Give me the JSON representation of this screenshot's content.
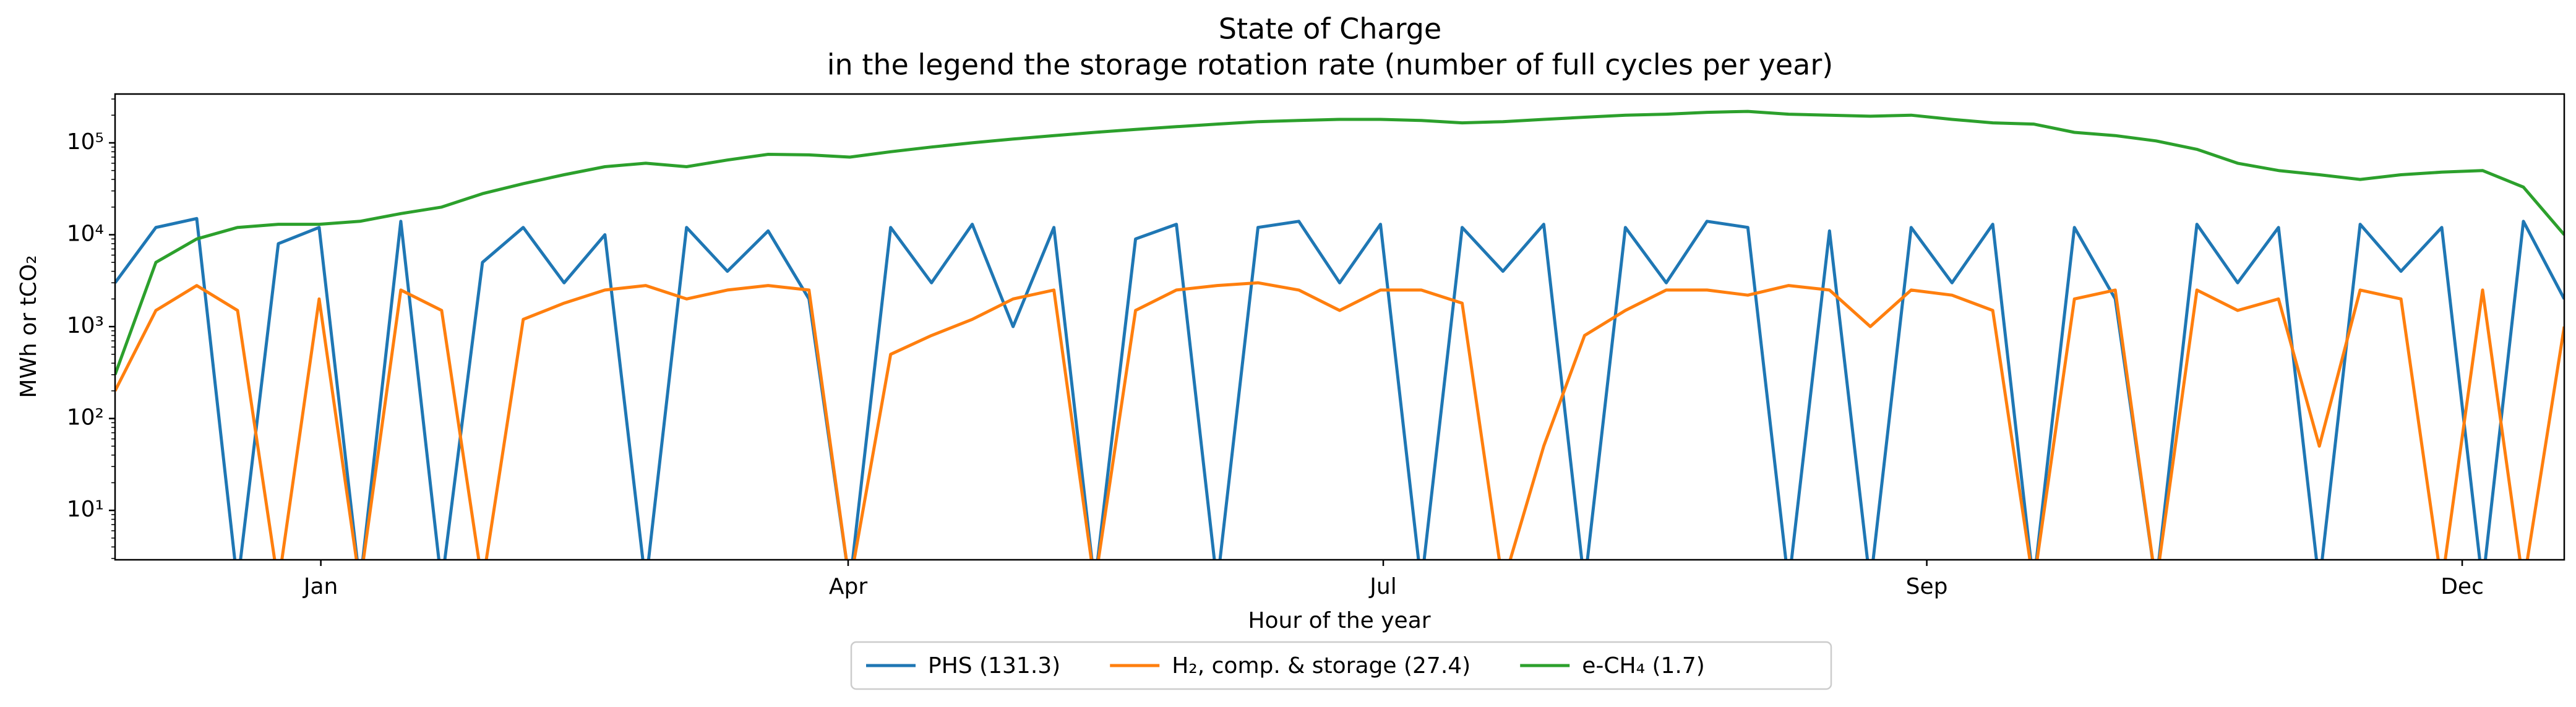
{
  "chart_data": {
    "type": "line",
    "title": "State of Charge",
    "subtitle": "in the legend the storage rotation rate (number of full cycles per year)",
    "x_label": "Hour of the year",
    "y_label": "MWh or tCO₂",
    "y_scale": "log",
    "legend": "below",
    "xlim": [
      0,
      8760
    ],
    "xticks": [
      {
        "value": 736,
        "label": "Jan"
      },
      {
        "value": 2622,
        "label": "Apr"
      },
      {
        "value": 4536,
        "label": "Jul"
      },
      {
        "value": 6480,
        "label": "Sep"
      },
      {
        "value": 8395,
        "label": "Dec"
      }
    ],
    "ylim": [
      2.9,
      340000
    ],
    "yticks": [
      {
        "value": 10,
        "label": "10¹"
      },
      {
        "value": 100,
        "label": "10²"
      },
      {
        "value": 1000,
        "label": "10³"
      },
      {
        "value": 10000,
        "label": "10⁴"
      },
      {
        "value": 100000,
        "label": "10⁵"
      }
    ],
    "x": [
      0,
      146,
      292,
      438,
      584,
      730,
      876,
      1022,
      1168,
      1314,
      1460,
      1606,
      1752,
      1898,
      2044,
      2190,
      2336,
      2482,
      2628,
      2774,
      2920,
      3066,
      3212,
      3358,
      3504,
      3650,
      3796,
      3942,
      4088,
      4234,
      4380,
      4526,
      4672,
      4818,
      4964,
      5110,
      5256,
      5402,
      5548,
      5694,
      5840,
      5986,
      6132,
      6278,
      6424,
      6570,
      6716,
      6862,
      7008,
      7154,
      7300,
      7446,
      7592,
      7738,
      7884,
      8030,
      8176,
      8322,
      8468,
      8614,
      8760
    ],
    "series": [
      {
        "name": "PHS (131.3)",
        "color": "#1f77b4",
        "values": [
          3000,
          12000,
          15000,
          0,
          8000,
          12000,
          0,
          14000,
          0,
          5000,
          12000,
          3000,
          10000,
          0,
          12000,
          4000,
          11000,
          2000,
          0,
          12000,
          3000,
          13000,
          1000,
          12000,
          0,
          9000,
          13000,
          0,
          12000,
          14000,
          3000,
          13000,
          0,
          12000,
          4000,
          13000,
          0,
          12000,
          3000,
          14000,
          12000,
          0,
          11000,
          0,
          12000,
          3000,
          13000,
          0,
          12000,
          2000,
          0,
          13000,
          3000,
          12000,
          0,
          13000,
          4000,
          12000,
          0,
          14000,
          2000
        ]
      },
      {
        "name": "H₂, comp. & storage (27.4)",
        "color": "#ff7f0e",
        "values": [
          200,
          1500,
          2800,
          1500,
          0,
          2000,
          0,
          2500,
          1500,
          0,
          1200,
          1800,
          2500,
          2800,
          2000,
          2500,
          2800,
          2500,
          0,
          500,
          800,
          1200,
          2000,
          2500,
          0,
          1500,
          2500,
          2800,
          3000,
          2500,
          1500,
          2500,
          2500,
          1800,
          0,
          50,
          800,
          1500,
          2500,
          2500,
          2200,
          2800,
          2500,
          1000,
          2500,
          2200,
          1500,
          0,
          2000,
          2500,
          0,
          2500,
          1500,
          2000,
          50,
          2500,
          2000,
          0,
          2500,
          0,
          1000
        ]
      },
      {
        "name": "e-CH₄ (1.7)",
        "color": "#2ca02c",
        "values": [
          300,
          5000,
          9000,
          12000,
          13000,
          13000,
          14000,
          17000,
          20000,
          28000,
          36000,
          45000,
          55000,
          60000,
          55000,
          65000,
          75000,
          74000,
          70000,
          80000,
          90000,
          100000,
          110000,
          120000,
          130000,
          140000,
          150000,
          160000,
          170000,
          175000,
          180000,
          180000,
          175000,
          165000,
          170000,
          180000,
          190000,
          200000,
          205000,
          215000,
          220000,
          205000,
          200000,
          195000,
          200000,
          180000,
          165000,
          160000,
          130000,
          120000,
          105000,
          85000,
          60000,
          50000,
          45000,
          40000,
          45000,
          48000,
          50000,
          33000,
          10000
        ]
      }
    ]
  }
}
